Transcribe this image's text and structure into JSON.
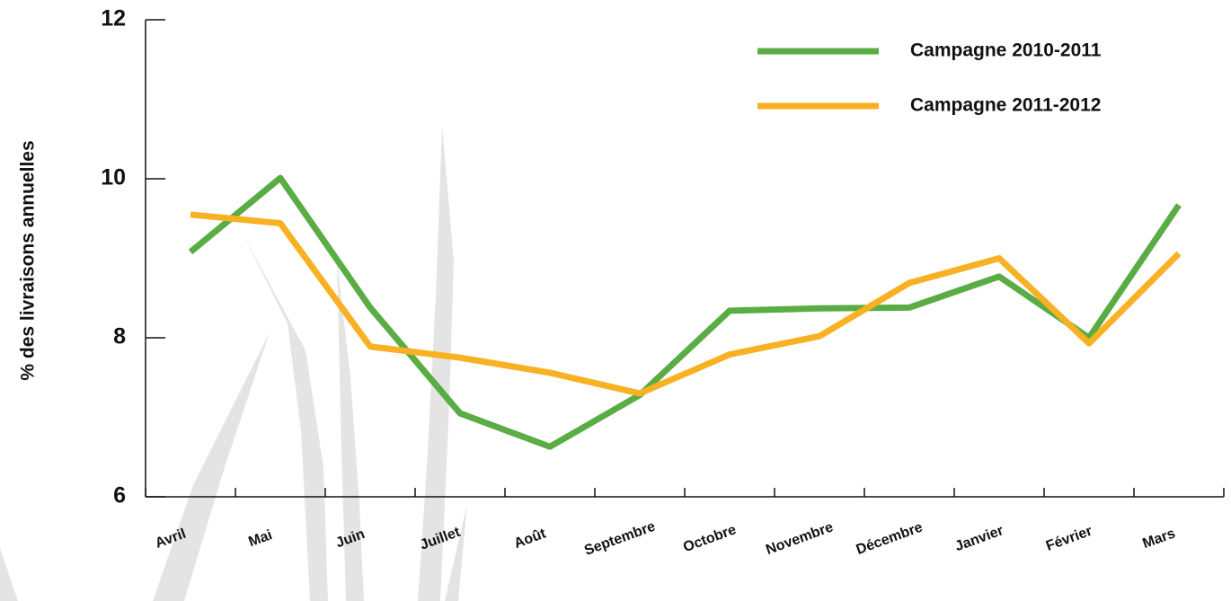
{
  "chart_data": {
    "type": "line",
    "y_label": "% des livraisons annuelles",
    "categories": [
      "Avril",
      "Mai",
      "Juin",
      "Juillet",
      "Août",
      "Septembre",
      "Octobre",
      "Novembre",
      "Décembre",
      "Janvier",
      "Février",
      "Mars"
    ],
    "series": [
      {
        "name": "Campagne 2010-2011",
        "color": "#5aac44",
        "values": [
          9.08,
          10.01,
          8.38,
          7.05,
          6.63,
          7.28,
          8.34,
          8.37,
          8.38,
          8.77,
          8.0,
          9.67
        ]
      },
      {
        "name": "Campagne 2011-2012",
        "color": "#f8b122",
        "values": [
          9.55,
          9.44,
          7.89,
          7.75,
          7.56,
          7.3,
          7.79,
          8.02,
          8.69,
          9.0,
          7.93,
          9.06
        ]
      }
    ],
    "ylim": [
      6,
      12
    ],
    "yticks": [
      6,
      8,
      10,
      12
    ]
  }
}
